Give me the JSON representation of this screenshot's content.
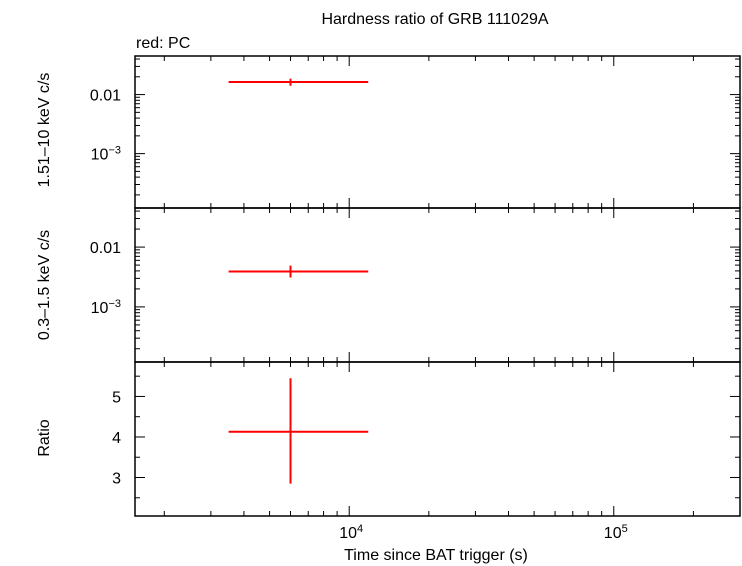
{
  "title": "Hardness ratio of GRB 111029A",
  "legend_note": "red: PC",
  "xlabel": "Time since BAT trigger (s)",
  "colors": {
    "series": "#ff0000",
    "axes": "#000000"
  },
  "chart_data": [
    {
      "type": "scatter",
      "panel": "hard",
      "ylabel": "1.51–10 keV c/s",
      "xscale": "log",
      "yscale": "log",
      "xlim": [
        1550,
        300000
      ],
      "ylim": [
        0.00012,
        0.045
      ],
      "yticks": [
        {
          "value": 0.01,
          "label": "0.01"
        },
        {
          "value": 0.001,
          "base": "10",
          "exp": "−3"
        }
      ],
      "series": [
        {
          "x": 6000,
          "xlo": 3500,
          "xhi": 11800,
          "y": 0.0163,
          "ylo": 0.0141,
          "yhi": 0.0186
        }
      ]
    },
    {
      "type": "scatter",
      "panel": "soft",
      "ylabel": "0.3–1.5 keV c/s",
      "xscale": "log",
      "yscale": "log",
      "xlim": [
        1550,
        300000
      ],
      "ylim": [
        0.00012,
        0.045
      ],
      "yticks": [
        {
          "value": 0.01,
          "label": "0.01"
        },
        {
          "value": 0.001,
          "base": "10",
          "exp": "−3"
        }
      ],
      "series": [
        {
          "x": 6000,
          "xlo": 3500,
          "xhi": 11800,
          "y": 0.0039,
          "ylo": 0.0031,
          "yhi": 0.0049
        }
      ]
    },
    {
      "type": "scatter",
      "panel": "ratio",
      "ylabel": "Ratio",
      "xscale": "log",
      "yscale": "linear",
      "xlim": [
        1550,
        300000
      ],
      "ylim": [
        2.05,
        5.85
      ],
      "yticks": [
        {
          "value": 3,
          "label": "3"
        },
        {
          "value": 4,
          "label": "4"
        },
        {
          "value": 5,
          "label": "5"
        }
      ],
      "series": [
        {
          "x": 6000,
          "xlo": 3500,
          "xhi": 11800,
          "y": 4.13,
          "ylo": 2.85,
          "yhi": 5.45
        }
      ]
    }
  ],
  "xticks": [
    {
      "value": 10000,
      "base": "10",
      "exp": "4"
    },
    {
      "value": 100000,
      "base": "10",
      "exp": "5"
    }
  ]
}
